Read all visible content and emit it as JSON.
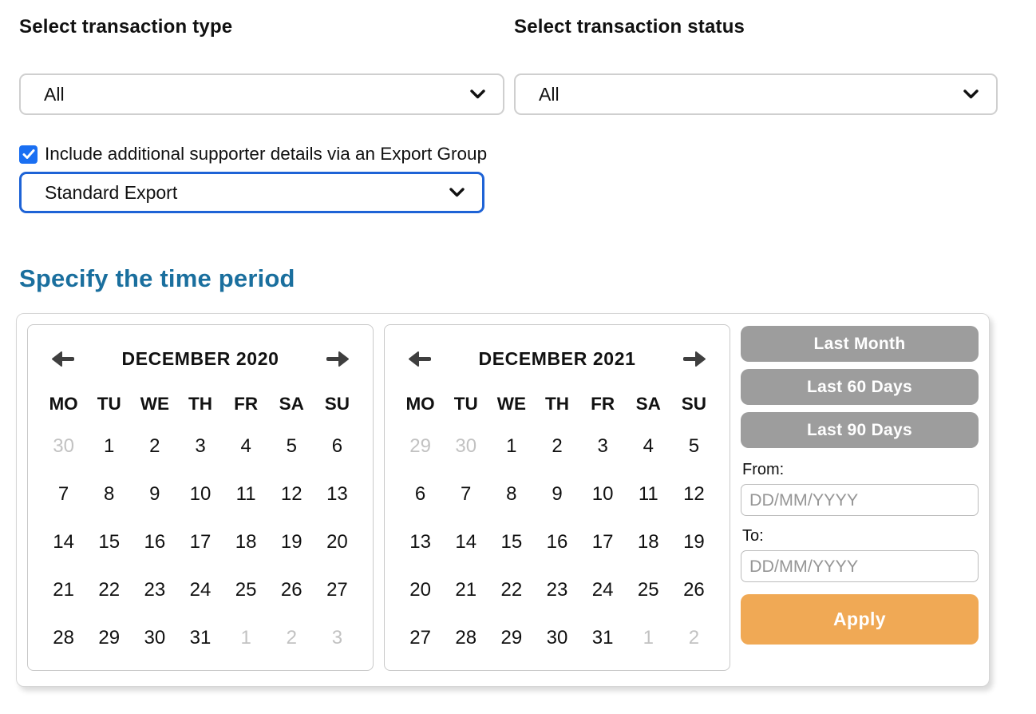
{
  "filters": {
    "type_label": "Select transaction type",
    "type_value": "All",
    "status_label": "Select transaction status",
    "status_value": "All"
  },
  "export_group": {
    "checkbox_label": "Include additional supporter details via an Export Group",
    "checked": true,
    "select_value": "Standard Export"
  },
  "time_period": {
    "heading": "Specify the time period",
    "calendars": [
      {
        "title": "DECEMBER 2020",
        "day_headers": [
          "MO",
          "TU",
          "WE",
          "TH",
          "FR",
          "SA",
          "SU"
        ],
        "weeks": [
          [
            {
              "day": "30",
              "muted": true
            },
            {
              "day": "1"
            },
            {
              "day": "2"
            },
            {
              "day": "3"
            },
            {
              "day": "4"
            },
            {
              "day": "5"
            },
            {
              "day": "6"
            }
          ],
          [
            {
              "day": "7"
            },
            {
              "day": "8"
            },
            {
              "day": "9"
            },
            {
              "day": "10"
            },
            {
              "day": "11"
            },
            {
              "day": "12"
            },
            {
              "day": "13"
            }
          ],
          [
            {
              "day": "14"
            },
            {
              "day": "15"
            },
            {
              "day": "16"
            },
            {
              "day": "17"
            },
            {
              "day": "18"
            },
            {
              "day": "19"
            },
            {
              "day": "20"
            }
          ],
          [
            {
              "day": "21"
            },
            {
              "day": "22"
            },
            {
              "day": "23"
            },
            {
              "day": "24"
            },
            {
              "day": "25"
            },
            {
              "day": "26"
            },
            {
              "day": "27"
            }
          ],
          [
            {
              "day": "28"
            },
            {
              "day": "29"
            },
            {
              "day": "30"
            },
            {
              "day": "31"
            },
            {
              "day": "1",
              "muted": true
            },
            {
              "day": "2",
              "muted": true
            },
            {
              "day": "3",
              "muted": true
            }
          ]
        ]
      },
      {
        "title": "DECEMBER 2021",
        "day_headers": [
          "MO",
          "TU",
          "WE",
          "TH",
          "FR",
          "SA",
          "SU"
        ],
        "weeks": [
          [
            {
              "day": "29",
              "muted": true
            },
            {
              "day": "30",
              "muted": true
            },
            {
              "day": "1"
            },
            {
              "day": "2"
            },
            {
              "day": "3"
            },
            {
              "day": "4"
            },
            {
              "day": "5"
            }
          ],
          [
            {
              "day": "6"
            },
            {
              "day": "7"
            },
            {
              "day": "8"
            },
            {
              "day": "9"
            },
            {
              "day": "10"
            },
            {
              "day": "11"
            },
            {
              "day": "12"
            }
          ],
          [
            {
              "day": "13"
            },
            {
              "day": "14"
            },
            {
              "day": "15"
            },
            {
              "day": "16"
            },
            {
              "day": "17"
            },
            {
              "day": "18"
            },
            {
              "day": "19"
            }
          ],
          [
            {
              "day": "20"
            },
            {
              "day": "21"
            },
            {
              "day": "22"
            },
            {
              "day": "23"
            },
            {
              "day": "24"
            },
            {
              "day": "25"
            },
            {
              "day": "26"
            }
          ],
          [
            {
              "day": "27"
            },
            {
              "day": "28"
            },
            {
              "day": "29"
            },
            {
              "day": "30"
            },
            {
              "day": "31"
            },
            {
              "day": "1",
              "muted": true
            },
            {
              "day": "2",
              "muted": true
            }
          ]
        ]
      }
    ],
    "quick_buttons": [
      "Last Month",
      "Last 60 Days",
      "Last 90 Days"
    ],
    "from_label": "From:",
    "to_label": "To:",
    "date_placeholder": "DD/MM/YYYY",
    "apply_label": "Apply"
  },
  "colors": {
    "heading": "#1a6f9e",
    "checkbox_blue": "#1a6ff2",
    "focus_border_blue": "#1e63d6",
    "quick_button_gray": "#9d9d9d",
    "apply_orange": "#f0a955",
    "muted_day_gray": "#c2c2c2",
    "arrow_gray": "#3f3f3f"
  }
}
